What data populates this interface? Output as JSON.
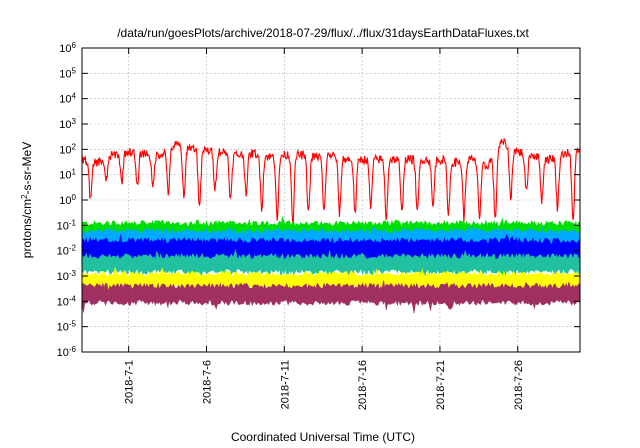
{
  "chart_data": {
    "type": "line",
    "title": "/data/run/goesPlots/archive/2018-07-29/flux/../flux/31daysEarthDataFluxes.txt",
    "xlabel": "Coordinated Universal Time (UTC)",
    "ylabel": {
      "base": "protons/cm",
      "sup": "2",
      "rest": "-s-sr-MeV"
    },
    "xlim": [
      "2018-06-28",
      "2018-07-30"
    ],
    "ylim": [
      1e-06,
      1000000.0
    ],
    "yscale": "log",
    "grid": true,
    "x_ticks": [
      "2018-7-1",
      "2018-7-6",
      "2018-7-11",
      "2018-7-16",
      "2018-7-21",
      "2018-7-26"
    ],
    "y_ticks": [
      {
        "base": "10",
        "exp": "-6"
      },
      {
        "base": "10",
        "exp": "-5"
      },
      {
        "base": "10",
        "exp": "-4"
      },
      {
        "base": "10",
        "exp": "-3"
      },
      {
        "base": "10",
        "exp": "-2"
      },
      {
        "base": "10",
        "exp": "-1"
      },
      {
        "base": "10",
        "exp": "0"
      },
      {
        "base": "10",
        "exp": "1"
      },
      {
        "base": "10",
        "exp": "2"
      },
      {
        "base": "10",
        "exp": "3"
      },
      {
        "base": "10",
        "exp": "4"
      },
      {
        "base": "10",
        "exp": "5"
      },
      {
        "base": "10",
        "exp": "6"
      }
    ],
    "series": [
      {
        "color": "#ff0000",
        "style": "line",
        "x": [
          "2018-06-28",
          "2018-06-29",
          "2018-06-30",
          "2018-07-01",
          "2018-07-02",
          "2018-07-03",
          "2018-07-04",
          "2018-07-05",
          "2018-07-06",
          "2018-07-07",
          "2018-07-08",
          "2018-07-09",
          "2018-07-10",
          "2018-07-11",
          "2018-07-12",
          "2018-07-13",
          "2018-07-14",
          "2018-07-15",
          "2018-07-16",
          "2018-07-17",
          "2018-07-18",
          "2018-07-19",
          "2018-07-20",
          "2018-07-21",
          "2018-07-22",
          "2018-07-23",
          "2018-07-24",
          "2018-07-25",
          "2018-07-26",
          "2018-07-27",
          "2018-07-28",
          "2018-07-29",
          "2018-07-30"
        ],
        "hi": [
          40,
          30,
          60,
          80,
          70,
          60,
          150,
          120,
          90,
          80,
          60,
          70,
          50,
          60,
          60,
          50,
          60,
          40,
          40,
          40,
          40,
          40,
          40,
          40,
          30,
          40,
          20,
          200,
          80,
          60,
          40,
          70,
          80
        ],
        "lo": [
          1,
          5,
          5,
          3,
          3,
          2,
          1,
          0.5,
          3,
          1,
          2,
          0.5,
          0.2,
          0.15,
          0.3,
          0.3,
          0.3,
          0.3,
          0.5,
          0.2,
          0.3,
          0.3,
          0.5,
          0.3,
          0.2,
          0.2,
          0.15,
          1,
          2,
          1,
          0.5,
          0.15,
          20
        ]
      },
      {
        "color": "#00e000",
        "style": "band",
        "upper": 0.12,
        "lower": 0.002
      },
      {
        "color": "#00aaff",
        "style": "band",
        "upper": 0.06,
        "lower": 0.003
      },
      {
        "color": "#0000ff",
        "style": "band",
        "upper": 0.025,
        "lower": 0.004
      },
      {
        "color": "#20c0a0",
        "style": "band",
        "upper": 0.006,
        "lower": 0.0015
      },
      {
        "color": "#ffff00",
        "style": "band",
        "upper": 0.0012,
        "lower": 0.00035
      },
      {
        "color": "#a03060",
        "style": "band",
        "upper": 0.0004,
        "lower": 9e-05
      }
    ]
  }
}
